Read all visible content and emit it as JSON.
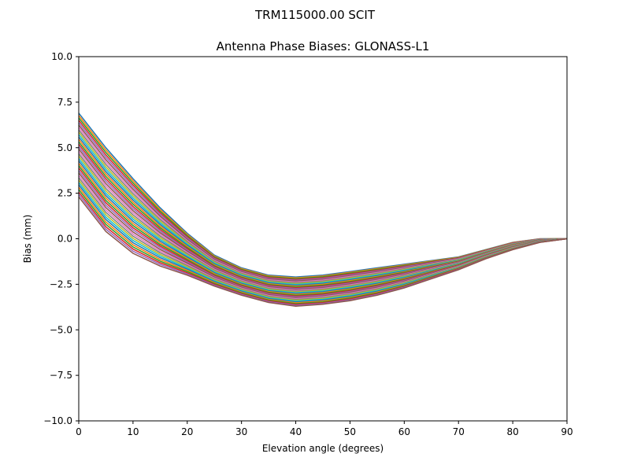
{
  "figure": {
    "suptitle": "TRM115000.00    SCIT"
  },
  "chart_data": {
    "type": "line",
    "title": "Antenna Phase Biases: GLONASS-L1",
    "xlabel": "Elevation angle (degrees)",
    "ylabel": "Bias (mm)",
    "xlim": [
      0,
      90
    ],
    "ylim": [
      -10,
      10
    ],
    "xticks": [
      0,
      10,
      20,
      30,
      40,
      50,
      60,
      70,
      80,
      90
    ],
    "xtick_labels": [
      "0",
      "10",
      "20",
      "30",
      "40",
      "50",
      "60",
      "70",
      "80",
      "90"
    ],
    "yticks": [
      -10,
      -7.5,
      -5,
      -2.5,
      0,
      2.5,
      5,
      7.5,
      10
    ],
    "ytick_labels": [
      "−10.0",
      "−7.5",
      "−5.0",
      "−2.5",
      "0.0",
      "2.5",
      "5.0",
      "7.5",
      "10.0"
    ],
    "grid": false,
    "legend": "none",
    "x": [
      0,
      5,
      10,
      15,
      20,
      25,
      30,
      35,
      40,
      45,
      50,
      55,
      60,
      65,
      70,
      75,
      80,
      85,
      90
    ],
    "series_count": 36,
    "envelope_upper": [
      6.9,
      5.0,
      3.3,
      1.7,
      0.3,
      -0.9,
      -1.6,
      -2.0,
      -2.1,
      -2.0,
      -1.8,
      -1.6,
      -1.4,
      -1.2,
      -1.0,
      -0.6,
      -0.2,
      0.0,
      0.0
    ],
    "envelope_lower": [
      2.3,
      0.4,
      -0.8,
      -1.5,
      -2.0,
      -2.6,
      -3.1,
      -3.5,
      -3.7,
      -3.6,
      -3.4,
      -3.1,
      -2.7,
      -2.2,
      -1.7,
      -1.1,
      -0.6,
      -0.2,
      0.0
    ],
    "colors": [
      "#1f77b4",
      "#ff7f0e",
      "#2ca02c",
      "#d62728",
      "#9467bd",
      "#8c564b",
      "#e377c2",
      "#7f7f7f",
      "#bcbd22",
      "#17becf"
    ]
  }
}
